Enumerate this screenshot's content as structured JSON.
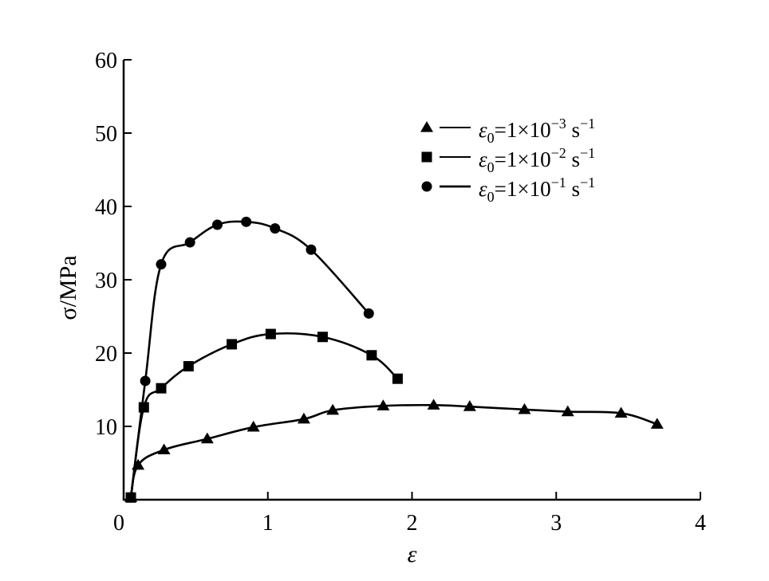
{
  "chart_data": {
    "type": "line",
    "xlabel": "ε",
    "ylabel": "σ/MPa",
    "xlim": [
      0,
      4
    ],
    "ylim": [
      0,
      60
    ],
    "xticks": [
      "0",
      "1",
      "2",
      "3",
      "4"
    ],
    "yticks": [
      "10",
      "20",
      "30",
      "40",
      "50",
      "60"
    ],
    "grid": false,
    "legend_position": "top-right",
    "series": [
      {
        "name": "ε0=1×10−3 s−1",
        "marker": "triangle",
        "name_parts": {
          "sym": "ε",
          "sub": "0",
          "mid": "=1×10",
          "exp": "−3",
          "unit": " s",
          "unit_exp": "−1"
        },
        "x": [
          0.05,
          0.1,
          0.28,
          0.58,
          0.9,
          1.25,
          1.45,
          1.8,
          2.15,
          2.4,
          2.78,
          3.08,
          3.45,
          3.7
        ],
        "y": [
          0.3,
          4.7,
          6.8,
          8.3,
          9.9,
          11.0,
          12.2,
          12.8,
          12.9,
          12.7,
          12.3,
          12.0,
          11.8,
          10.3
        ]
      },
      {
        "name": "ε0=1×10−2 s−1",
        "marker": "square",
        "name_parts": {
          "sym": "ε",
          "sub": "0",
          "mid": "=1×10",
          "exp": "−2",
          "unit": " s",
          "unit_exp": "−1"
        },
        "x": [
          0.05,
          0.14,
          0.26,
          0.45,
          0.75,
          1.02,
          1.38,
          1.72,
          1.9
        ],
        "y": [
          0.3,
          12.6,
          15.2,
          18.2,
          21.2,
          22.6,
          22.2,
          19.7,
          16.5
        ]
      },
      {
        "name": "ε0=1×10−1 s−1",
        "marker": "circle",
        "name_parts": {
          "sym": "ε",
          "sub": "0",
          "mid": "=1×10",
          "exp": "−1",
          "unit": " s",
          "unit_exp": "−1"
        },
        "x": [
          0.05,
          0.15,
          0.26,
          0.46,
          0.65,
          0.85,
          1.05,
          1.3,
          1.7
        ],
        "y": [
          0.3,
          16.2,
          32.1,
          35.1,
          37.5,
          37.9,
          37.0,
          34.1,
          25.4
        ]
      }
    ]
  }
}
